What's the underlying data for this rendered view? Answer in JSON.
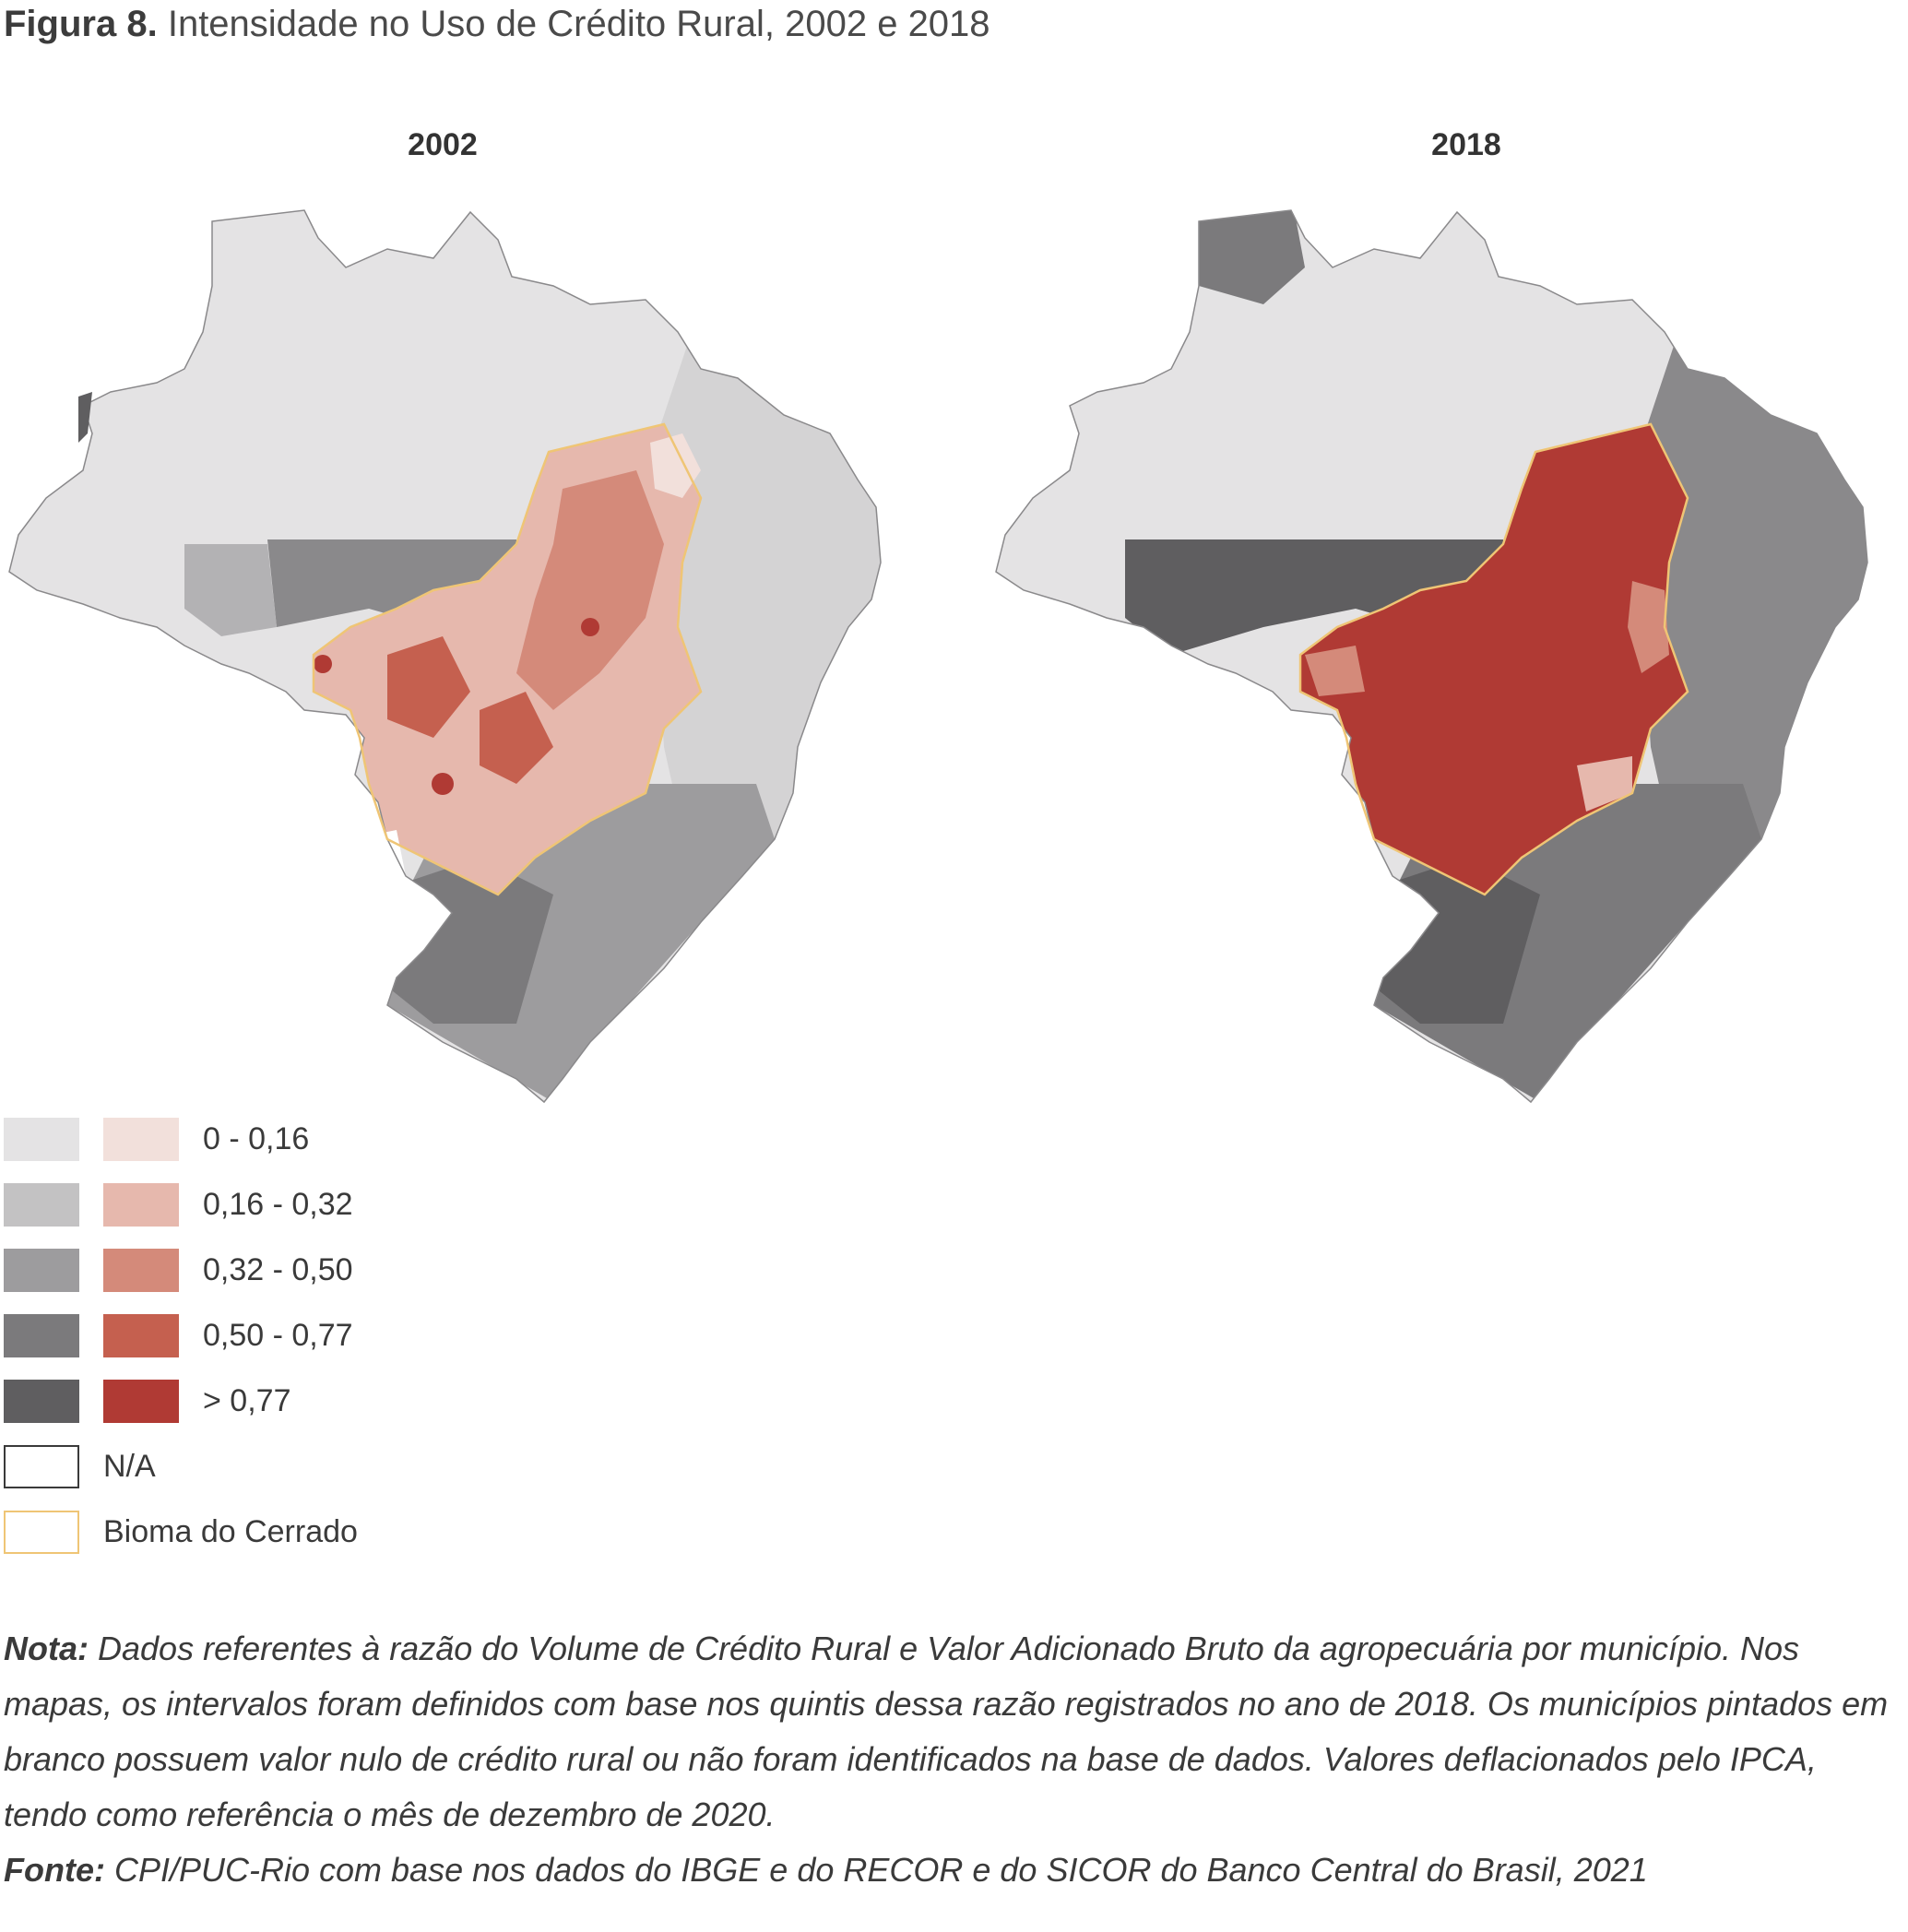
{
  "figure": {
    "label": "Figura 8.",
    "title": "Intensidade no Uso de Crédito Rural, 2002 e 2018"
  },
  "maps": [
    {
      "title": "2002"
    },
    {
      "title": "2018"
    }
  ],
  "legend": {
    "classes": [
      {
        "label": "0 - 0,16",
        "gray": "#e4e3e4",
        "red": "#f2e0db"
      },
      {
        "label": "0,16 - 0,32",
        "gray": "#c3c2c3",
        "red": "#e6b8ad"
      },
      {
        "label": "0,32 - 0,50",
        "gray": "#9d9c9e",
        "red": "#d48a7a"
      },
      {
        "label": "0,50 - 0,77",
        "gray": "#7b7a7c",
        "red": "#c5604f"
      },
      {
        "label": "> 0,77",
        "gray": "#5f5e60",
        "red": "#b03a34"
      }
    ],
    "na_label": "N/A",
    "cerrado_label": "Bioma do Cerrado",
    "cerrado_color": "#efc575"
  },
  "notes": {
    "nota_label": "Nota:",
    "nota_text": "Dados referentes à razão do Volume de Crédito Rural e Valor Adicionado Bruto da agropecuária por município. Nos mapas, os intervalos foram definidos com base nos quintis dessa razão registrados no ano de 2018. Os municípios pintados em branco possuem valor nulo de crédito rural ou não foram identificados na base de dados. Valores deflacionados pelo IPCA, tendo como referência o mês de dezembro de 2020.",
    "fonte_label": "Fonte:",
    "fonte_text": "CPI/PUC-Rio com base nos dados do IBGE e do RECOR e do SICOR do Banco Central do Brasil, 2021"
  }
}
